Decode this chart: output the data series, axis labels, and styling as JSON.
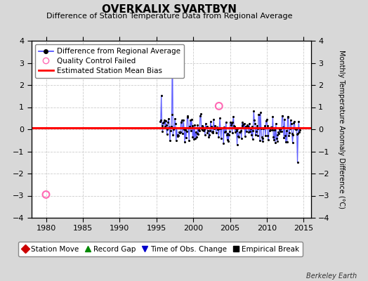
{
  "title": "OVERKALIX SVARTBYN",
  "subtitle": "Difference of Station Temperature Data from Regional Average",
  "ylabel_right": "Monthly Temperature Anomaly Difference (°C)",
  "xlim": [
    1978,
    2016
  ],
  "ylim": [
    -4,
    4
  ],
  "yticks": [
    -4,
    -3,
    -2,
    -1,
    0,
    1,
    2,
    3,
    4
  ],
  "xticks": [
    1980,
    1985,
    1990,
    1995,
    2000,
    2005,
    2010,
    2015
  ],
  "bias_value": 0.05,
  "qc_fail_points": [
    [
      1980.0,
      -2.95
    ],
    [
      2003.5,
      1.05
    ]
  ],
  "data_start_year": 1995.5,
  "data_end_year": 2014.5,
  "spike_year": 1997.2,
  "spike_value": 3.8,
  "spike2_year": 2014.1,
  "spike2_value": -1.5,
  "figure_bg": "#d8d8d8",
  "plot_bg": "#ffffff",
  "grid_color": "#cccccc",
  "line_color": "#4444ff",
  "bias_color": "#ff0000",
  "dot_color": "#000000",
  "qc_color": "#ff69b4",
  "watermark": "Berkeley Earth",
  "seed": 137,
  "legend_bottom_items": [
    {
      "marker": "D",
      "color": "#cc0000",
      "label": "Station Move"
    },
    {
      "marker": "^",
      "color": "#008800",
      "label": "Record Gap"
    },
    {
      "marker": "v",
      "color": "#0000cc",
      "label": "Time of Obs. Change"
    },
    {
      "marker": "s",
      "color": "#000000",
      "label": "Empirical Break"
    }
  ]
}
